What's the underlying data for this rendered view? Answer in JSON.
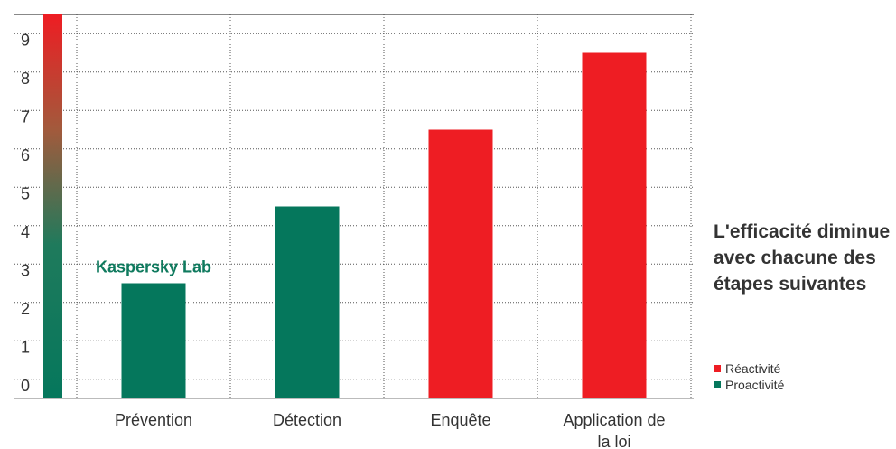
{
  "chart_data": {
    "type": "bar",
    "categories": [
      "Prévention",
      "Détection",
      "Enquête",
      "Application de la loi"
    ],
    "category_lines": [
      [
        "Prévention"
      ],
      [
        "Détection"
      ],
      [
        "Enquête"
      ],
      [
        "Application de",
        "la loi"
      ]
    ],
    "values": [
      3,
      5,
      7,
      9
    ],
    "bar_groups": [
      "Proactivité",
      "Proactivité",
      "Réactivité",
      "Réactivité"
    ],
    "ylim": [
      0,
      10
    ],
    "yticks": [
      0,
      1,
      2,
      3,
      4,
      5,
      6,
      7,
      8,
      9
    ],
    "grid": true,
    "gradient_bar": {
      "from_color": "#0c7a5e",
      "to_color": "#ee1d23",
      "value": 10
    },
    "annotation": {
      "text": "Kaspersky Lab",
      "category": "Prévention",
      "color": "#0f7a5e"
    },
    "legend": [
      {
        "label": "Réactivité",
        "color": "#ee1d23"
      },
      {
        "label": "Proactivité",
        "color": "#05775c"
      }
    ],
    "legend_position": "right"
  },
  "side_text": "L'efficacité diminue avec chacune des étapes suivantes",
  "colors": {
    "reactivity": "#ee1d23",
    "proactivity": "#05775c",
    "text": "#333333",
    "grid": "#555555",
    "top_line": "#888888"
  }
}
